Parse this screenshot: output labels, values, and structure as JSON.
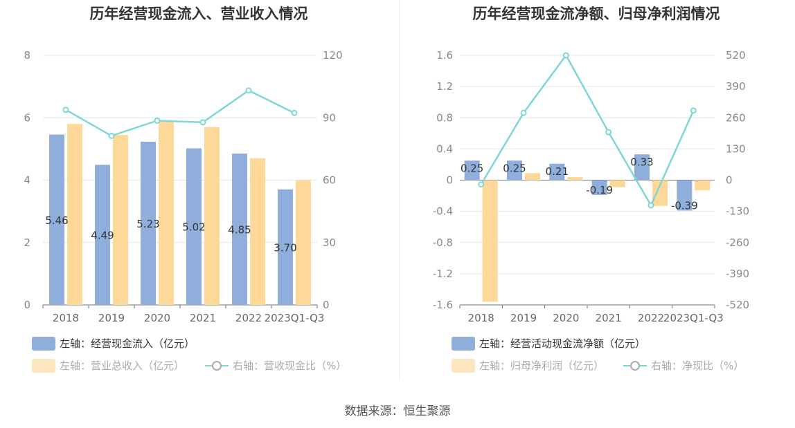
{
  "source_label": "数据来源：恒生聚源",
  "colors": {
    "bar_primary": "#8faedb",
    "bar_secondary": "#fed899",
    "line": "#7fd6d6",
    "grid": "#e3e6ef",
    "axis": "#6e7079"
  },
  "chart_data": [
    {
      "type": "bar",
      "title": "历年经营现金流入、营业收入情况",
      "categories": [
        "2018",
        "2019",
        "2020",
        "2021",
        "2022",
        "2023Q1-Q3"
      ],
      "y_left": {
        "min": 0,
        "max": 8,
        "ticks": [
          "0",
          "2",
          "4",
          "6",
          "8"
        ]
      },
      "y_right": {
        "min": 0,
        "max": 120,
        "ticks": [
          "0",
          "30",
          "60",
          "90",
          "120"
        ]
      },
      "series": [
        {
          "name": "经营现金流入（亿元）",
          "axis": "left",
          "kind": "bar",
          "values": [
            5.46,
            4.49,
            5.23,
            5.02,
            4.85,
            3.7
          ],
          "labels": [
            "5.46",
            "4.49",
            "5.23",
            "5.02",
            "4.85",
            "3.70"
          ]
        },
        {
          "name": "营业总收入（亿元）",
          "axis": "left",
          "kind": "bar",
          "values": [
            5.8,
            5.45,
            5.9,
            5.7,
            4.7,
            4.0
          ]
        },
        {
          "name": "营收现金比（%）",
          "axis": "right",
          "kind": "line",
          "values": [
            93.8,
            81.3,
            88.6,
            87.8,
            103.1,
            92.3
          ]
        }
      ],
      "legend": [
        {
          "axis_tag": "左轴：",
          "text": "经营现金流入（亿元）",
          "kind": "bar-primary",
          "dim": false
        },
        {
          "axis_tag": "左轴：",
          "text": "营业总收入（亿元）",
          "kind": "bar-secondary",
          "dim": true
        },
        {
          "axis_tag": "右轴：",
          "text": "营收现金比（%）",
          "kind": "line",
          "dim": true
        }
      ]
    },
    {
      "type": "bar",
      "title": "历年经营现金流净额、归母净利润情况",
      "categories": [
        "2018",
        "2019",
        "2020",
        "2021",
        "2022",
        "2023Q1-Q3"
      ],
      "y_left": {
        "min": -1.6,
        "max": 1.6,
        "ticks": [
          "-1.6",
          "-1.2",
          "-0.8",
          "-0.4",
          "0",
          "0.4",
          "0.8",
          "1.2",
          "1.6"
        ]
      },
      "y_right": {
        "min": -520,
        "max": 520,
        "ticks": [
          "-520",
          "-390",
          "-260",
          "-130",
          "0",
          "130",
          "260",
          "390",
          "520"
        ]
      },
      "series": [
        {
          "name": "经营活动现金流净额（亿元）",
          "axis": "left",
          "kind": "bar",
          "values": [
            0.25,
            0.25,
            0.21,
            -0.19,
            0.33,
            -0.39
          ],
          "labels": [
            "0.25",
            "0.25",
            "0.21",
            "-0.19",
            "0.33",
            "-0.39"
          ]
        },
        {
          "name": "归母净利润（亿元）",
          "axis": "left",
          "kind": "bar",
          "values": [
            -1.56,
            0.09,
            0.04,
            -0.09,
            -0.33,
            -0.13
          ]
        },
        {
          "name": "净现比（%）",
          "axis": "right",
          "kind": "line",
          "values": [
            -18,
            280,
            520,
            200,
            -105,
            290
          ]
        }
      ],
      "legend": [
        {
          "axis_tag": "左轴：",
          "text": "经营活动现金流净额（亿元）",
          "kind": "bar-primary",
          "dim": false
        },
        {
          "axis_tag": "左轴：",
          "text": "归母净利润（亿元）",
          "kind": "bar-secondary",
          "dim": true
        },
        {
          "axis_tag": "右轴：",
          "text": "净现比（%）",
          "kind": "line",
          "dim": true
        }
      ]
    }
  ]
}
